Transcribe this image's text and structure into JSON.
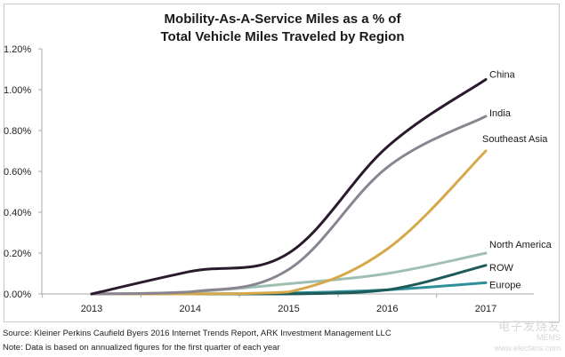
{
  "chart_data": {
    "type": "line",
    "title": "Mobility-As-A-Service Miles as a % of Total Vehicle Miles Traveled by Region",
    "title_lines": [
      "Mobility-As-A-Service Miles as a % of",
      "Total Vehicle Miles Traveled by Region"
    ],
    "xlabel": "",
    "ylabel": "",
    "x": [
      2013,
      2014,
      2015,
      2016,
      2017
    ],
    "x_tick_labels": [
      "2013",
      "2014",
      "2015",
      "2016",
      "2017"
    ],
    "ylim": [
      0,
      1.2
    ],
    "y_ticks": [
      0,
      0.2,
      0.4,
      0.6,
      0.8,
      1.0,
      1.2
    ],
    "y_tick_labels": [
      "0.00%",
      "0.20%",
      "0.40%",
      "0.60%",
      "0.80%",
      "1.00%",
      "1.20%"
    ],
    "grid": false,
    "legend": "inline-right",
    "series": [
      {
        "name": "China",
        "color": "#2b1a2e",
        "values": [
          0.0,
          0.11,
          0.2,
          0.72,
          1.05
        ]
      },
      {
        "name": "India",
        "color": "#8a8490",
        "values": [
          0.0,
          0.01,
          0.12,
          0.62,
          0.87
        ]
      },
      {
        "name": "Southeast Asia",
        "color": "#d6a84a",
        "values": [
          0.0,
          0.0,
          0.01,
          0.22,
          0.7
        ]
      },
      {
        "name": "North America",
        "color": "#9fc0b0",
        "values": [
          0.0,
          0.01,
          0.05,
          0.1,
          0.2
        ]
      },
      {
        "name": "ROW",
        "color": "#1f5a5a",
        "values": [
          0.0,
          0.0,
          0.0,
          0.02,
          0.14
        ]
      },
      {
        "name": "Europe",
        "color": "#2e8f98",
        "values": [
          0.0,
          0.0,
          0.005,
          0.02,
          0.055
        ]
      }
    ]
  },
  "footer": {
    "source": "Source: Kleiner Perkins Caufield Byers 2016 Internet Trends Report, ARK Investment Management LLC",
    "note": "Note: Data is based on annualized figures for the first quarter of each year"
  },
  "watermark": {
    "line1": "电子发烧友",
    "line2": "MEMS",
    "line3": "www.elecfans.com"
  }
}
